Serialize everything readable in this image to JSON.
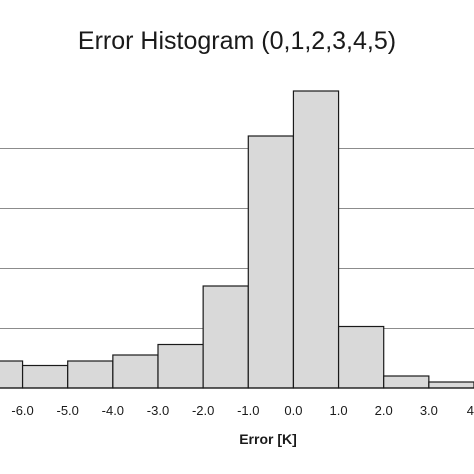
{
  "chart_data": {
    "type": "bar",
    "title": "Error Histogram (0,1,2,3,4,5)",
    "xlabel": "Error [K]",
    "ylabel": "",
    "grid": true,
    "legend": "none",
    "bar_color": "#d9d9d9",
    "edge_color": "#1a1a1a",
    "grid_color": "#8c8c8c",
    "ylim": [
      0,
      1
    ],
    "xlim": [
      -6.5,
      4.0
    ],
    "bins": [
      {
        "start": -7.0,
        "end": -6.0,
        "value": 0.09
      },
      {
        "start": -6.0,
        "end": -5.0,
        "value": 0.075
      },
      {
        "start": -5.0,
        "end": -4.0,
        "value": 0.09
      },
      {
        "start": -4.0,
        "end": -3.0,
        "value": 0.11
      },
      {
        "start": -3.0,
        "end": -2.0,
        "value": 0.145
      },
      {
        "start": -2.0,
        "end": -1.0,
        "value": 0.34
      },
      {
        "start": -1.0,
        "end": 0.0,
        "value": 0.84
      },
      {
        "start": 0.0,
        "end": 1.0,
        "value": 0.99
      },
      {
        "start": 1.0,
        "end": 2.0,
        "value": 0.205
      },
      {
        "start": 2.0,
        "end": 3.0,
        "value": 0.04
      },
      {
        "start": 3.0,
        "end": 4.0,
        "value": 0.02
      }
    ],
    "x_ticks": [
      {
        "value": -6.0,
        "label": "-6.0"
      },
      {
        "value": -5.0,
        "label": "-5.0"
      },
      {
        "value": -4.0,
        "label": "-4.0"
      },
      {
        "value": -3.0,
        "label": "-3.0"
      },
      {
        "value": -2.0,
        "label": "-2.0"
      },
      {
        "value": -1.0,
        "label": "-1.0"
      },
      {
        "value": 0.0,
        "label": "0.0"
      },
      {
        "value": 1.0,
        "label": "1.0"
      },
      {
        "value": 2.0,
        "label": "2.0"
      },
      {
        "value": 3.0,
        "label": "3.0"
      },
      {
        "value": 4.0,
        "label": "4"
      }
    ],
    "gridlines": [
      0.2,
      0.4,
      0.6,
      0.8
    ]
  }
}
